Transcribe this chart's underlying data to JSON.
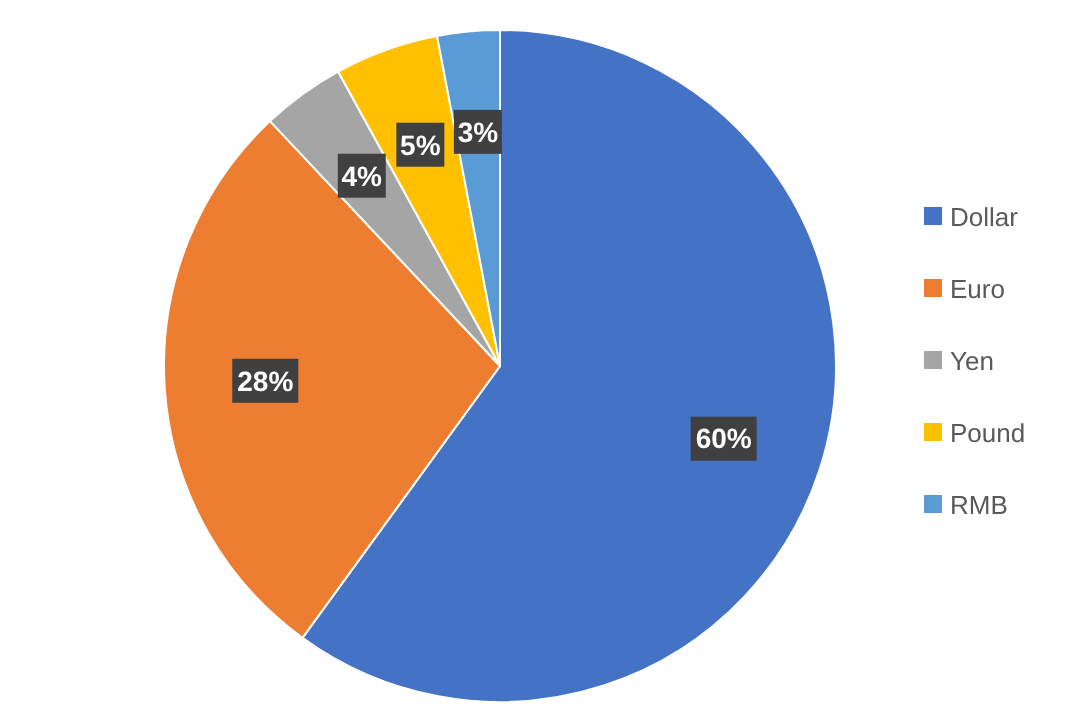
{
  "chart_data": {
    "type": "pie",
    "categories": [
      "Dollar",
      "Euro",
      "Yen",
      "Pound",
      "RMB"
    ],
    "values": [
      60,
      28,
      4,
      5,
      3
    ],
    "colors": [
      "#4472c4",
      "#ed7d31",
      "#a5a5a5",
      "#ffc000",
      "#5b9bd5"
    ],
    "value_labels": [
      "60%",
      "28%",
      "4%",
      "5%",
      "3%"
    ],
    "legend": "right"
  }
}
